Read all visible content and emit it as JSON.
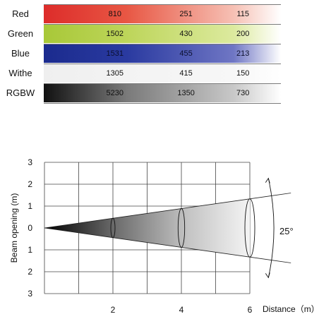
{
  "lux_table": {
    "rows": [
      {
        "label": "Red",
        "values": [
          "810",
          "251",
          "115"
        ],
        "gradient": [
          "#dd2c2a",
          "#e85744",
          "#f6c0b4",
          "#ffffff"
        ]
      },
      {
        "label": "Green",
        "values": [
          "1502",
          "430",
          "200"
        ],
        "gradient": [
          "#a8c838",
          "#bdd55a",
          "#dcea9e",
          "#ffffff"
        ]
      },
      {
        "label": "Blue",
        "values": [
          "1531",
          "455",
          "213"
        ],
        "gradient": [
          "#1b2b8e",
          "#2a3aa0",
          "#6f76c4",
          "#ffffff"
        ]
      },
      {
        "label": "Withe",
        "values": [
          "1305",
          "415",
          "150"
        ],
        "gradient": [
          "#efefef",
          "#f3f3f3",
          "#f7f7f7",
          "#ffffff"
        ]
      },
      {
        "label": "RGBW",
        "values": [
          "5230",
          "1350",
          "730"
        ],
        "gradient": [
          "#111111",
          "#7a7a7a",
          "#c8c8c8",
          "#ffffff"
        ]
      }
    ]
  },
  "beam_diagram": {
    "y_axis_label": "Beam opening (m)",
    "x_axis_label": "Distance（m）",
    "y_ticks": [
      "3",
      "2",
      "1",
      "0",
      "1",
      "2",
      "3"
    ],
    "x_ticks": [
      "2",
      "4",
      "6"
    ],
    "angle_label": "25°",
    "beam_angle_deg": 25,
    "x_range": [
      0,
      6
    ],
    "y_range": [
      -3,
      3
    ],
    "max_distance_m": 7.2,
    "cross_section_distances_m": [
      2,
      4,
      6
    ],
    "colors": {
      "beam_dark": "#000000",
      "beam_light": "#ffffff",
      "grid": "#444444"
    }
  }
}
